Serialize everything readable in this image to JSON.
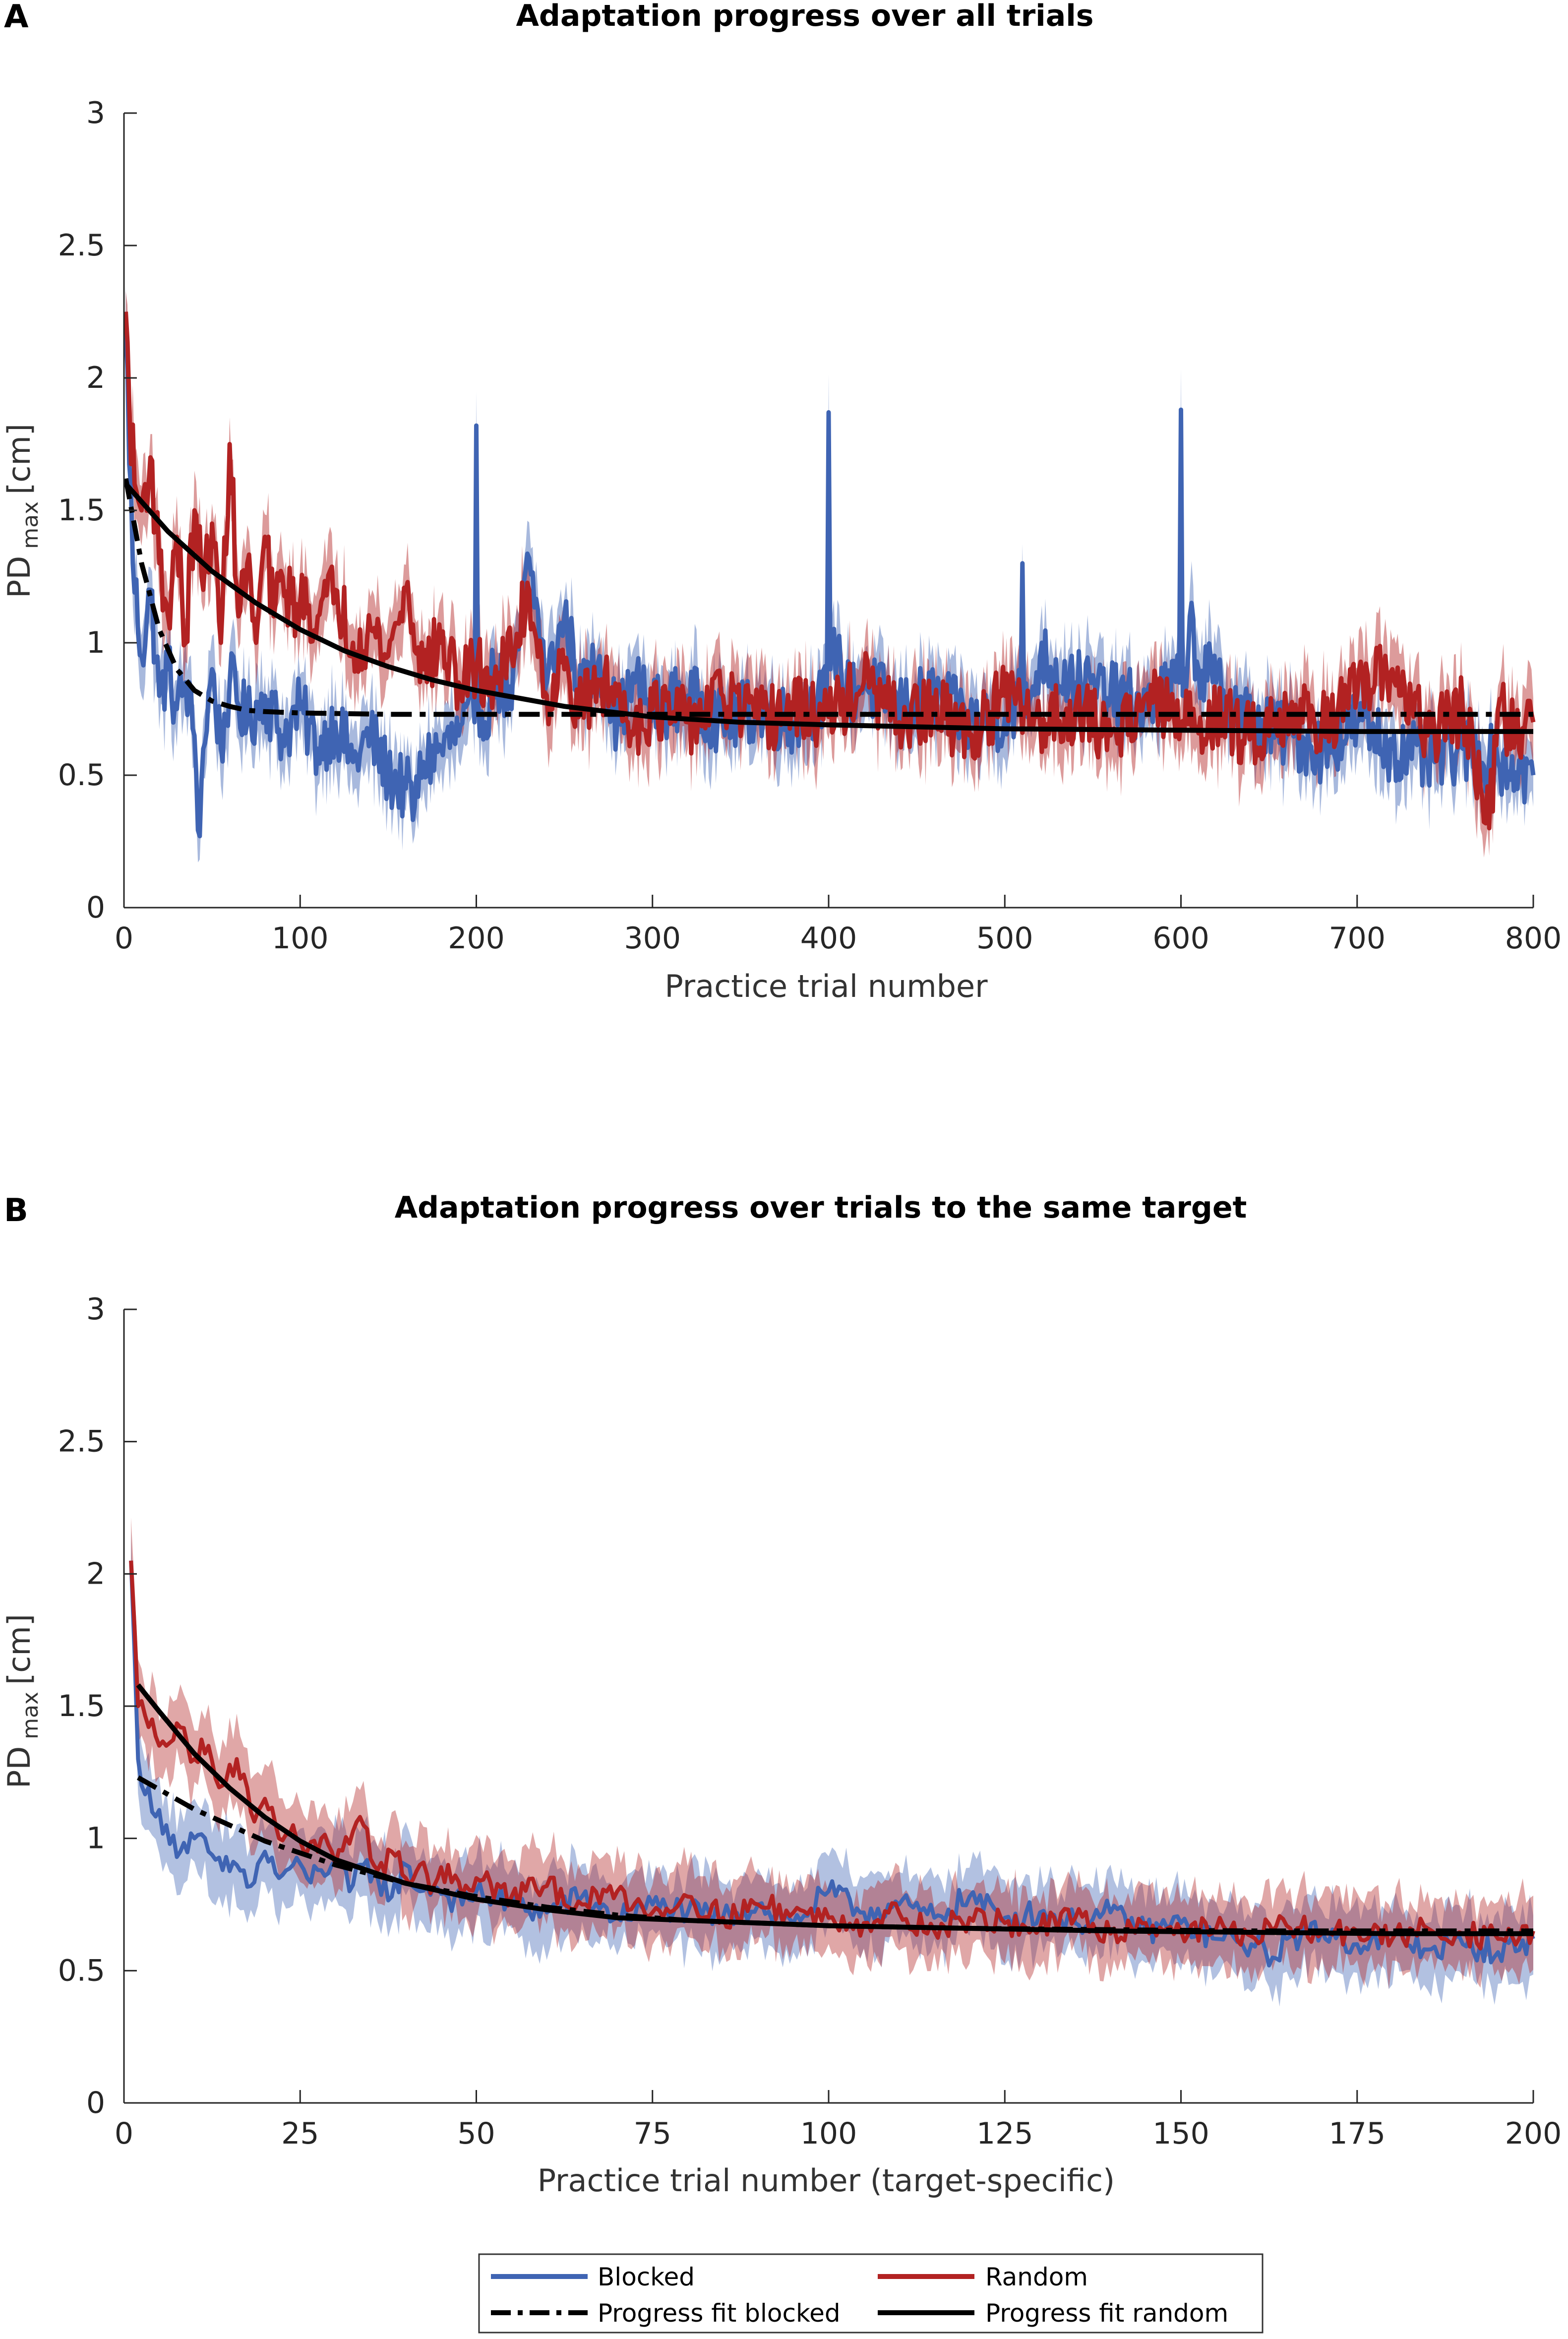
{
  "chart_data": [
    {
      "type": "line",
      "panel_label": "A",
      "title": "Adaptation progress over all trials",
      "xlabel": "Practice trial number",
      "ylabel_main": "PD",
      "ylabel_sub": "max",
      "ylabel_unit": "[cm]",
      "xlim": [
        0,
        800
      ],
      "ylim": [
        0,
        3
      ],
      "xticks": [
        0,
        100,
        200,
        300,
        400,
        500,
        600,
        700,
        800
      ],
      "yticks": [
        0,
        0.5,
        1,
        1.5,
        2,
        2.5,
        3
      ],
      "xtick_labels": [
        "0",
        "100",
        "200",
        "300",
        "400",
        "500",
        "600",
        "700",
        "800"
      ],
      "ytick_labels": [
        "0",
        "0.5",
        "1",
        "1.5",
        "2",
        "2.5",
        "3"
      ],
      "series": [
        {
          "name": "Blocked",
          "color": "#3f64b3",
          "x": [
            1,
            5,
            10,
            15,
            20,
            25,
            30,
            35,
            40,
            43,
            45,
            50,
            55,
            60,
            70,
            80,
            90,
            100,
            110,
            120,
            130,
            140,
            150,
            160,
            165,
            170,
            180,
            190,
            199,
            200,
            201,
            205,
            210,
            220,
            230,
            240,
            250,
            260,
            270,
            280,
            290,
            300,
            320,
            340,
            360,
            380,
            399,
            400,
            401,
            405,
            410,
            420,
            440,
            460,
            480,
            500,
            509,
            510,
            511,
            515,
            520,
            540,
            560,
            580,
            599,
            600,
            601,
            605,
            610,
            620,
            640,
            660,
            680,
            700,
            720,
            740,
            760,
            780,
            800
          ],
          "values": [
            2.2,
            1.3,
            0.95,
            1.2,
            0.8,
            0.9,
            0.75,
            0.85,
            0.65,
            0.27,
            0.6,
            0.9,
            0.6,
            0.85,
            0.7,
            0.8,
            0.65,
            0.75,
            0.6,
            0.7,
            0.55,
            0.65,
            0.5,
            0.45,
            0.38,
            0.55,
            0.6,
            0.65,
            0.7,
            1.82,
            0.8,
            0.7,
            0.9,
            0.75,
            1.32,
            0.85,
            1.1,
            0.8,
            0.95,
            0.7,
            0.85,
            0.75,
            0.8,
            0.7,
            0.75,
            0.7,
            0.8,
            1.87,
            0.9,
            1.0,
            0.8,
            0.85,
            0.75,
            0.8,
            0.7,
            0.72,
            0.8,
            1.3,
            0.75,
            0.8,
            0.95,
            0.85,
            0.8,
            0.75,
            0.85,
            1.88,
            0.8,
            1.1,
            0.9,
            0.85,
            0.7,
            0.65,
            0.6,
            0.7,
            0.6,
            0.55,
            0.6,
            0.55,
            0.5
          ]
        },
        {
          "name": "Random",
          "color": "#b22222",
          "x": [
            1,
            3,
            6,
            10,
            15,
            20,
            25,
            30,
            35,
            40,
            45,
            50,
            55,
            60,
            65,
            70,
            75,
            80,
            85,
            90,
            95,
            100,
            110,
            120,
            130,
            140,
            150,
            160,
            170,
            180,
            190,
            200,
            210,
            220,
            230,
            240,
            250,
            260,
            270,
            280,
            290,
            300,
            320,
            340,
            360,
            380,
            400,
            420,
            440,
            460,
            480,
            500,
            520,
            540,
            560,
            580,
            600,
            620,
            640,
            660,
            680,
            700,
            720,
            740,
            760,
            775,
            780,
            790,
            800
          ],
          "values": [
            2.25,
            1.9,
            1.6,
            1.5,
            1.7,
            1.3,
            1.1,
            1.4,
            1.0,
            1.5,
            1.2,
            1.45,
            1.0,
            1.75,
            1.1,
            1.3,
            1.0,
            1.4,
            1.1,
            1.25,
            1.15,
            1.15,
            1.1,
            1.2,
            1.0,
            1.05,
            0.95,
            1.2,
            0.9,
            1.0,
            0.85,
            0.9,
            0.85,
            0.95,
            1.2,
            0.8,
            0.9,
            0.75,
            0.85,
            0.8,
            0.7,
            0.75,
            0.7,
            0.8,
            0.7,
            0.75,
            0.72,
            0.85,
            0.7,
            0.75,
            0.65,
            0.8,
            0.7,
            0.75,
            0.65,
            0.8,
            0.7,
            0.72,
            0.65,
            0.75,
            0.7,
            0.8,
            0.9,
            0.65,
            0.75,
            0.3,
            0.75,
            0.65,
            0.7
          ]
        },
        {
          "name": "Progress fit blocked",
          "color": "#000000",
          "x": [
            1,
            10,
            20,
            30,
            40,
            50,
            60,
            70,
            80,
            100,
            150,
            200,
            300,
            400,
            500,
            600,
            700,
            800
          ],
          "values": [
            1.62,
            1.3,
            1.05,
            0.9,
            0.82,
            0.78,
            0.76,
            0.745,
            0.74,
            0.735,
            0.73,
            0.73,
            0.73,
            0.73,
            0.73,
            0.73,
            0.73,
            0.73
          ]
        },
        {
          "name": "Progress fit random",
          "color": "#000000",
          "x": [
            1,
            25,
            50,
            75,
            100,
            125,
            150,
            175,
            200,
            250,
            300,
            350,
            400,
            500,
            600,
            700,
            800
          ],
          "values": [
            1.6,
            1.42,
            1.27,
            1.15,
            1.05,
            0.97,
            0.91,
            0.86,
            0.82,
            0.76,
            0.72,
            0.7,
            0.69,
            0.675,
            0.67,
            0.665,
            0.665
          ]
        }
      ]
    },
    {
      "type": "line",
      "panel_label": "B",
      "title": "Adaptation progress over trials to the same target",
      "xlabel": "Practice trial number (target-specific)",
      "ylabel_main": "PD",
      "ylabel_sub": "max",
      "ylabel_unit": "[cm]",
      "xlim": [
        0,
        200
      ],
      "ylim": [
        0,
        3
      ],
      "xticks": [
        0,
        25,
        50,
        75,
        100,
        125,
        150,
        175,
        200
      ],
      "yticks": [
        0,
        0.5,
        1,
        1.5,
        2,
        2.5,
        3
      ],
      "xtick_labels": [
        "0",
        "25",
        "50",
        "75",
        "100",
        "125",
        "150",
        "175",
        "200"
      ],
      "ytick_labels": [
        "0",
        "0.5",
        "1",
        "1.5",
        "2",
        "2.5",
        "3"
      ],
      "series": [
        {
          "name": "Blocked",
          "color": "#3f64b3",
          "x": [
            1,
            2,
            4,
            6,
            8,
            10,
            12,
            14,
            16,
            18,
            20,
            22,
            24,
            26,
            28,
            30,
            32,
            34,
            36,
            38,
            40,
            42,
            44,
            46,
            48,
            50,
            55,
            60,
            65,
            70,
            75,
            80,
            85,
            90,
            95,
            100,
            105,
            110,
            115,
            120,
            125,
            130,
            135,
            140,
            145,
            150,
            155,
            160,
            163,
            165,
            170,
            175,
            180,
            185,
            190,
            195,
            200
          ],
          "values": [
            2.05,
            1.3,
            1.1,
            1.05,
            0.95,
            1.0,
            0.95,
            0.88,
            0.9,
            0.82,
            0.95,
            0.85,
            0.9,
            0.85,
            0.88,
            0.92,
            0.8,
            0.9,
            0.85,
            0.78,
            0.9,
            0.8,
            0.82,
            0.78,
            0.75,
            0.8,
            0.75,
            0.72,
            0.78,
            0.7,
            0.75,
            0.72,
            0.7,
            0.75,
            0.68,
            0.8,
            0.72,
            0.75,
            0.7,
            0.78,
            0.7,
            0.72,
            0.68,
            0.72,
            0.65,
            0.68,
            0.62,
            0.6,
            0.55,
            0.62,
            0.65,
            0.6,
            0.62,
            0.58,
            0.6,
            0.57,
            0.62
          ]
        },
        {
          "name": "Random",
          "color": "#b22222",
          "x": [
            1,
            2,
            4,
            6,
            8,
            10,
            12,
            14,
            16,
            18,
            20,
            22,
            24,
            26,
            28,
            30,
            32,
            34,
            36,
            38,
            40,
            42,
            44,
            46,
            48,
            50,
            55,
            60,
            65,
            70,
            75,
            80,
            85,
            90,
            95,
            100,
            105,
            110,
            115,
            120,
            125,
            130,
            135,
            140,
            145,
            150,
            155,
            160,
            165,
            170,
            175,
            180,
            185,
            190,
            195,
            200
          ],
          "values": [
            2.05,
            1.5,
            1.45,
            1.35,
            1.42,
            1.3,
            1.35,
            1.2,
            1.3,
            1.1,
            1.15,
            1.0,
            1.05,
            0.95,
            1.0,
            0.9,
            0.98,
            1.05,
            0.88,
            0.95,
            0.85,
            0.9,
            0.82,
            0.9,
            0.78,
            0.85,
            0.78,
            0.82,
            0.75,
            0.8,
            0.72,
            0.78,
            0.7,
            0.75,
            0.72,
            0.7,
            0.68,
            0.72,
            0.65,
            0.7,
            0.68,
            0.66,
            0.7,
            0.64,
            0.68,
            0.65,
            0.66,
            0.63,
            0.67,
            0.64,
            0.65,
            0.62,
            0.66,
            0.64,
            0.62,
            0.65
          ]
        },
        {
          "name": "Progress fit blocked",
          "color": "#000000",
          "x": [
            2,
            10,
            20,
            30,
            40,
            50,
            60,
            70,
            80,
            90,
            100,
            120,
            140,
            160,
            180,
            200
          ],
          "values": [
            1.23,
            1.11,
            0.99,
            0.9,
            0.83,
            0.78,
            0.74,
            0.71,
            0.69,
            0.68,
            0.67,
            0.66,
            0.655,
            0.65,
            0.65,
            0.65
          ]
        },
        {
          "name": "Progress fit random",
          "color": "#000000",
          "x": [
            2,
            5,
            10,
            15,
            20,
            25,
            30,
            40,
            50,
            60,
            70,
            80,
            90,
            100,
            120,
            140,
            160,
            180,
            200
          ],
          "values": [
            1.58,
            1.48,
            1.32,
            1.19,
            1.08,
            0.99,
            0.92,
            0.83,
            0.77,
            0.73,
            0.7,
            0.69,
            0.68,
            0.67,
            0.66,
            0.65,
            0.645,
            0.64,
            0.64
          ]
        }
      ]
    }
  ],
  "legend": {
    "items": [
      {
        "label": "Blocked",
        "color": "#3f64b3",
        "style": "solid"
      },
      {
        "label": "Random",
        "color": "#b22222",
        "style": "solid"
      },
      {
        "label": "Progress fit blocked",
        "color": "#000000",
        "style": "dashdot"
      },
      {
        "label": "Progress fit random",
        "color": "#000000",
        "style": "solid"
      }
    ]
  }
}
